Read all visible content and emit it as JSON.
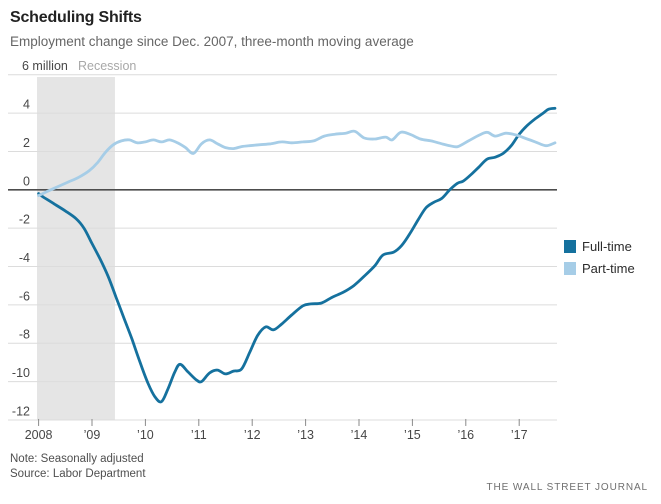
{
  "header": {
    "title": "Scheduling Shifts",
    "subtitle": "Employment change since Dec. 2007, three-month moving average"
  },
  "footer": {
    "note": "Note: Seasonally adjusted",
    "source": "Source: Labor Department",
    "credit": "THE WALL STREET JOURNAL"
  },
  "chart_data": {
    "type": "line",
    "y_unit": "million",
    "xlim": [
      2008,
      2017.67
    ],
    "ylim": [
      -12,
      6
    ],
    "grid": true,
    "legend_position": "right",
    "style": {
      "grid_color": "#dcdcdc",
      "zero_line_color": "#4d4d4d",
      "axis_text_color": "#474747",
      "tick_color": "#8a8a8a",
      "recession_fill": "#e5e5e5",
      "recession_text_color": "#a8a8a8"
    },
    "recession": {
      "label": "Recession",
      "from": 2007.97,
      "to": 2009.43
    },
    "x_axis": {
      "ticks": [
        {
          "t": 2008,
          "label": "2008"
        },
        {
          "t": 2009,
          "label": "’09"
        },
        {
          "t": 2010,
          "label": "’10"
        },
        {
          "t": 2011,
          "label": "’11"
        },
        {
          "t": 2012,
          "label": "’12"
        },
        {
          "t": 2013,
          "label": "’13"
        },
        {
          "t": 2014,
          "label": "’14"
        },
        {
          "t": 2015,
          "label": "’15"
        },
        {
          "t": 2016,
          "label": "’16"
        },
        {
          "t": 2017,
          "label": "’17"
        }
      ]
    },
    "y_axis": {
      "ticks": [
        {
          "v": 6,
          "label": "6 million"
        },
        {
          "v": 4,
          "label": "4"
        },
        {
          "v": 2,
          "label": "2"
        },
        {
          "v": 0,
          "label": "0"
        },
        {
          "v": -2,
          "label": "-2"
        },
        {
          "v": -4,
          "label": "-4"
        },
        {
          "v": -6,
          "label": "-6"
        },
        {
          "v": -8,
          "label": "-8"
        },
        {
          "v": -10,
          "label": "-10"
        },
        {
          "v": -12,
          "label": "-12"
        }
      ]
    },
    "series": [
      {
        "name": "Full-time",
        "color": "#15719e",
        "points": [
          [
            2008.0,
            -0.2
          ],
          [
            2008.1,
            -0.4
          ],
          [
            2008.3,
            -0.75
          ],
          [
            2008.5,
            -1.1
          ],
          [
            2008.7,
            -1.5
          ],
          [
            2008.85,
            -2.0
          ],
          [
            2009.0,
            -2.8
          ],
          [
            2009.15,
            -3.6
          ],
          [
            2009.3,
            -4.5
          ],
          [
            2009.45,
            -5.6
          ],
          [
            2009.6,
            -6.7
          ],
          [
            2009.75,
            -7.8
          ],
          [
            2009.9,
            -9.0
          ],
          [
            2010.05,
            -10.1
          ],
          [
            2010.18,
            -10.8
          ],
          [
            2010.3,
            -11.05
          ],
          [
            2010.42,
            -10.4
          ],
          [
            2010.55,
            -9.5
          ],
          [
            2010.65,
            -9.1
          ],
          [
            2010.8,
            -9.5
          ],
          [
            2010.95,
            -9.9
          ],
          [
            2011.05,
            -10.0
          ],
          [
            2011.2,
            -9.55
          ],
          [
            2011.35,
            -9.4
          ],
          [
            2011.5,
            -9.6
          ],
          [
            2011.65,
            -9.45
          ],
          [
            2011.8,
            -9.35
          ],
          [
            2011.95,
            -8.5
          ],
          [
            2012.1,
            -7.6
          ],
          [
            2012.25,
            -7.15
          ],
          [
            2012.4,
            -7.3
          ],
          [
            2012.55,
            -7.0
          ],
          [
            2012.75,
            -6.5
          ],
          [
            2012.95,
            -6.05
          ],
          [
            2013.1,
            -5.95
          ],
          [
            2013.3,
            -5.9
          ],
          [
            2013.5,
            -5.6
          ],
          [
            2013.7,
            -5.35
          ],
          [
            2013.9,
            -5.0
          ],
          [
            2014.1,
            -4.5
          ],
          [
            2014.3,
            -3.95
          ],
          [
            2014.45,
            -3.4
          ],
          [
            2014.65,
            -3.25
          ],
          [
            2014.8,
            -2.9
          ],
          [
            2014.95,
            -2.3
          ],
          [
            2015.1,
            -1.6
          ],
          [
            2015.25,
            -0.95
          ],
          [
            2015.4,
            -0.65
          ],
          [
            2015.55,
            -0.45
          ],
          [
            2015.7,
            0.0
          ],
          [
            2015.85,
            0.35
          ],
          [
            2015.95,
            0.45
          ],
          [
            2016.1,
            0.8
          ],
          [
            2016.25,
            1.2
          ],
          [
            2016.4,
            1.6
          ],
          [
            2016.55,
            1.7
          ],
          [
            2016.7,
            1.9
          ],
          [
            2016.85,
            2.3
          ],
          [
            2017.0,
            2.9
          ],
          [
            2017.15,
            3.35
          ],
          [
            2017.3,
            3.7
          ],
          [
            2017.45,
            4.0
          ],
          [
            2017.55,
            4.2
          ],
          [
            2017.67,
            4.25
          ]
        ]
      },
      {
        "name": "Part-time",
        "color": "#a6cde7",
        "points": [
          [
            2008.0,
            -0.3
          ],
          [
            2008.15,
            -0.1
          ],
          [
            2008.35,
            0.15
          ],
          [
            2008.55,
            0.4
          ],
          [
            2008.75,
            0.65
          ],
          [
            2008.95,
            1.0
          ],
          [
            2009.1,
            1.4
          ],
          [
            2009.25,
            1.95
          ],
          [
            2009.4,
            2.35
          ],
          [
            2009.55,
            2.55
          ],
          [
            2009.7,
            2.6
          ],
          [
            2009.85,
            2.45
          ],
          [
            2010.0,
            2.5
          ],
          [
            2010.15,
            2.6
          ],
          [
            2010.3,
            2.5
          ],
          [
            2010.45,
            2.6
          ],
          [
            2010.6,
            2.45
          ],
          [
            2010.75,
            2.2
          ],
          [
            2010.9,
            1.9
          ],
          [
            2011.05,
            2.4
          ],
          [
            2011.2,
            2.6
          ],
          [
            2011.35,
            2.4
          ],
          [
            2011.5,
            2.2
          ],
          [
            2011.65,
            2.15
          ],
          [
            2011.8,
            2.25
          ],
          [
            2011.95,
            2.3
          ],
          [
            2012.15,
            2.35
          ],
          [
            2012.35,
            2.4
          ],
          [
            2012.55,
            2.5
          ],
          [
            2012.75,
            2.45
          ],
          [
            2012.95,
            2.5
          ],
          [
            2013.15,
            2.55
          ],
          [
            2013.35,
            2.8
          ],
          [
            2013.55,
            2.9
          ],
          [
            2013.75,
            2.95
          ],
          [
            2013.92,
            3.05
          ],
          [
            2014.1,
            2.7
          ],
          [
            2014.3,
            2.65
          ],
          [
            2014.5,
            2.75
          ],
          [
            2014.62,
            2.6
          ],
          [
            2014.78,
            3.0
          ],
          [
            2014.95,
            2.9
          ],
          [
            2015.15,
            2.65
          ],
          [
            2015.35,
            2.55
          ],
          [
            2015.55,
            2.4
          ],
          [
            2015.7,
            2.3
          ],
          [
            2015.85,
            2.25
          ],
          [
            2016.05,
            2.55
          ],
          [
            2016.25,
            2.85
          ],
          [
            2016.4,
            3.0
          ],
          [
            2016.55,
            2.8
          ],
          [
            2016.75,
            2.95
          ],
          [
            2016.95,
            2.85
          ],
          [
            2017.1,
            2.7
          ],
          [
            2017.3,
            2.5
          ],
          [
            2017.5,
            2.3
          ],
          [
            2017.67,
            2.45
          ]
        ]
      }
    ]
  }
}
